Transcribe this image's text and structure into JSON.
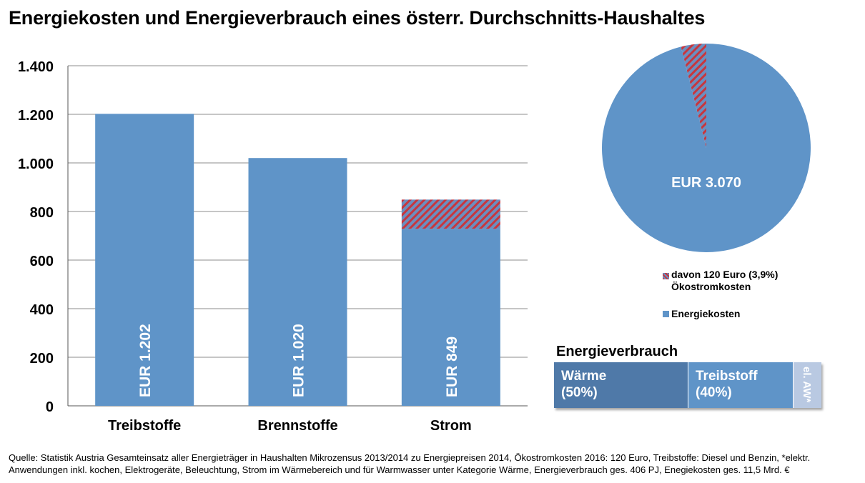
{
  "title": "Energiekosten und Energieverbrauch eines österr. Durchschnitts-Haushaltes",
  "colors": {
    "bar": "#5f94c8",
    "hatch_red": "#c8363d",
    "grid": "#8c8c8c"
  },
  "chart_data": [
    {
      "type": "bar",
      "stacked": true,
      "categories": [
        "Treibstoffe",
        "Brennstoffe",
        "Strom"
      ],
      "series": [
        {
          "values": [
            1202,
            1020,
            729
          ]
        },
        {
          "values": [
            0,
            0,
            120
          ]
        }
      ],
      "data_labels": [
        "EUR 1.202",
        "EUR 1.020",
        "EUR 849"
      ],
      "ylim": [
        0,
        1400
      ],
      "yticks": [
        0,
        200,
        400,
        600,
        800,
        1000,
        1200,
        1400
      ],
      "ytick_labels": [
        "0",
        "200",
        "400",
        "600",
        "800",
        "1.000",
        "1.200",
        "1.400"
      ],
      "grid": true
    },
    {
      "type": "pie",
      "slices": [
        {
          "name": "davon 120 Euro (3,9%) Ökostromkosten",
          "value": 120
        },
        {
          "name": "Energiekosten",
          "value": 2950
        }
      ],
      "center_label": "EUR 3.070",
      "legend": "bottom"
    },
    {
      "type": "bar",
      "title": "Energieverbrauch",
      "orientation": "horizontal",
      "stacked": true,
      "categories": [
        "Wärme",
        "Treibstoff",
        "el. AW*"
      ],
      "values": [
        50,
        40,
        10
      ],
      "segment_labels": [
        "Wärme (50%)",
        "Treibstoff (40%)",
        "el. AW*"
      ]
    }
  ],
  "legend": {
    "hatch_line1": "davon 120 Euro (3,9%)",
    "hatch_line2": "Ökostromkosten",
    "solid": "Energiekosten"
  },
  "energy": {
    "title": "Energieverbrauch",
    "seg1_line1": "Wärme",
    "seg1_line2": "(50%)",
    "seg2_line1": "Treibstoff",
    "seg2_line2": "(40%)",
    "seg3": "el. AW*"
  },
  "source_text": "Quelle: Statistik Austria Gesamteinsatz aller Energieträger in Haushalten Mikrozensus 2013/2014 zu Energiepreisen 2014, Ökostromkosten 2016: 120 Euro, Treibstoffe: Diesel und Benzin, *elektr. Anwendungen inkl. kochen, Elektrogeräte, Beleuchtung, Strom im Wärmebereich und für Warmwasser unter Kategorie Wärme, Energieverbrauch ges. 406 PJ, Enegiekosten ges. 11,5 Mrd. €"
}
